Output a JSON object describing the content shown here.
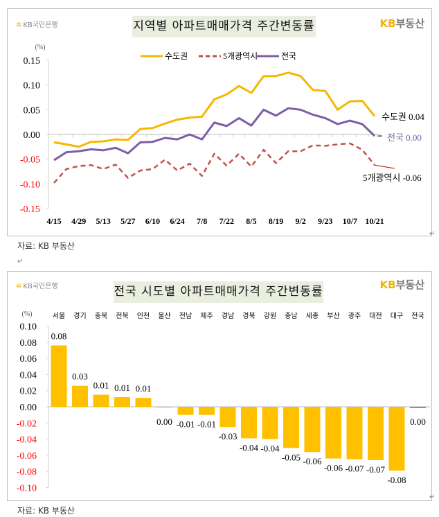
{
  "logo_text": "KB국민은행",
  "brand_text": {
    "kb": "KB",
    "rest": "부동산"
  },
  "source_caption": "자료: KB 부동산",
  "colors": {
    "seoul_metro": "#f5b800",
    "five_metros": "#c0504d",
    "nation": "#7b5ea7",
    "bar": "#ffc000",
    "negative_tick": "#ff0000",
    "title_bg": "#e9eedf",
    "brand": "#f0b400"
  },
  "chart_data": [
    {
      "type": "line",
      "title": "지역별 아파트매매가격 주간변동률",
      "ylabel": "(%)",
      "ylim": [
        -0.15,
        0.15
      ],
      "yticks": [
        "0.15",
        "0.10",
        "0.05",
        "0.00",
        "-0.05",
        "-0.10",
        "-0.15"
      ],
      "x": [
        "4/15",
        "4/22",
        "4/29",
        "5/6",
        "5/13",
        "5/20",
        "5/27",
        "6/3",
        "6/10",
        "6/17",
        "6/24",
        "7/1",
        "7/8",
        "7/15",
        "7/22",
        "7/29",
        "8/5",
        "8/12",
        "8/19",
        "8/26",
        "9/2",
        "9/9",
        "9/23",
        "9/30",
        "10/7",
        "10/14",
        "10/21"
      ],
      "xtick_labels": [
        "4/15",
        "4/29",
        "5/13",
        "5/27",
        "6/10",
        "6/24",
        "7/8",
        "7/22",
        "8/5",
        "8/19",
        "9/2",
        "9/23",
        "10/7",
        "10/21"
      ],
      "legend": "top",
      "series": [
        {
          "name": "수도권",
          "style": "solid",
          "values": [
            -0.016,
            -0.02,
            -0.025,
            -0.015,
            -0.014,
            -0.01,
            -0.011,
            0.011,
            0.013,
            0.022,
            0.03,
            0.034,
            0.036,
            0.071,
            0.081,
            0.098,
            0.084,
            0.118,
            0.118,
            0.125,
            0.118,
            0.09,
            0.088,
            0.05,
            0.067,
            0.068,
            0.037
          ],
          "end_label": "수도권 0.04"
        },
        {
          "name": "5개광역시",
          "style": "dashed",
          "values": [
            -0.098,
            -0.07,
            -0.064,
            -0.062,
            -0.07,
            -0.061,
            -0.088,
            -0.073,
            -0.07,
            -0.051,
            -0.073,
            -0.059,
            -0.084,
            -0.039,
            -0.063,
            -0.039,
            -0.065,
            -0.031,
            -0.058,
            -0.034,
            -0.034,
            -0.022,
            -0.023,
            -0.02,
            -0.018,
            -0.031,
            -0.062
          ],
          "end_label": "5개광역시 -0.06"
        },
        {
          "name": "전국",
          "style": "solid",
          "values": [
            -0.052,
            -0.036,
            -0.034,
            -0.03,
            -0.032,
            -0.027,
            -0.038,
            -0.016,
            -0.015,
            -0.007,
            -0.01,
            0.0,
            -0.01,
            0.024,
            0.017,
            0.033,
            0.018,
            0.05,
            0.038,
            0.053,
            0.05,
            0.04,
            0.033,
            0.021,
            0.028,
            0.021,
            -0.003
          ],
          "end_label": "전국 0.00"
        }
      ]
    },
    {
      "type": "bar",
      "title": "전국 시도별 아파트매매가격 주간변동률",
      "ylabel": "(%)",
      "ylim": [
        -0.1,
        0.1
      ],
      "yticks": [
        "0.10",
        "0.08",
        "0.06",
        "0.04",
        "0.02",
        "0.00",
        "-0.02",
        "-0.04",
        "-0.06",
        "-0.08",
        "-0.10"
      ],
      "categories": [
        "서울",
        "경기",
        "충북",
        "전북",
        "인천",
        "울산",
        "전남",
        "제주",
        "경남",
        "경북",
        "강원",
        "충남",
        "세종",
        "부산",
        "광주",
        "대전",
        "대구",
        "전국"
      ],
      "values": [
        0.076,
        0.026,
        0.015,
        0.012,
        0.011,
        -0.001,
        -0.01,
        -0.01,
        -0.025,
        -0.039,
        -0.04,
        -0.051,
        -0.056,
        -0.064,
        -0.065,
        -0.066,
        -0.079,
        -0.001
      ],
      "data_labels": [
        "0.08",
        "0.03",
        "0.01",
        "0.01",
        "0.01",
        "0.00",
        "-0.01",
        "-0.01",
        "-0.03",
        "-0.04",
        "-0.04",
        "-0.05",
        "-0.06",
        "-0.06",
        "-0.07",
        "-0.07",
        "-0.08",
        "0.00"
      ]
    }
  ]
}
